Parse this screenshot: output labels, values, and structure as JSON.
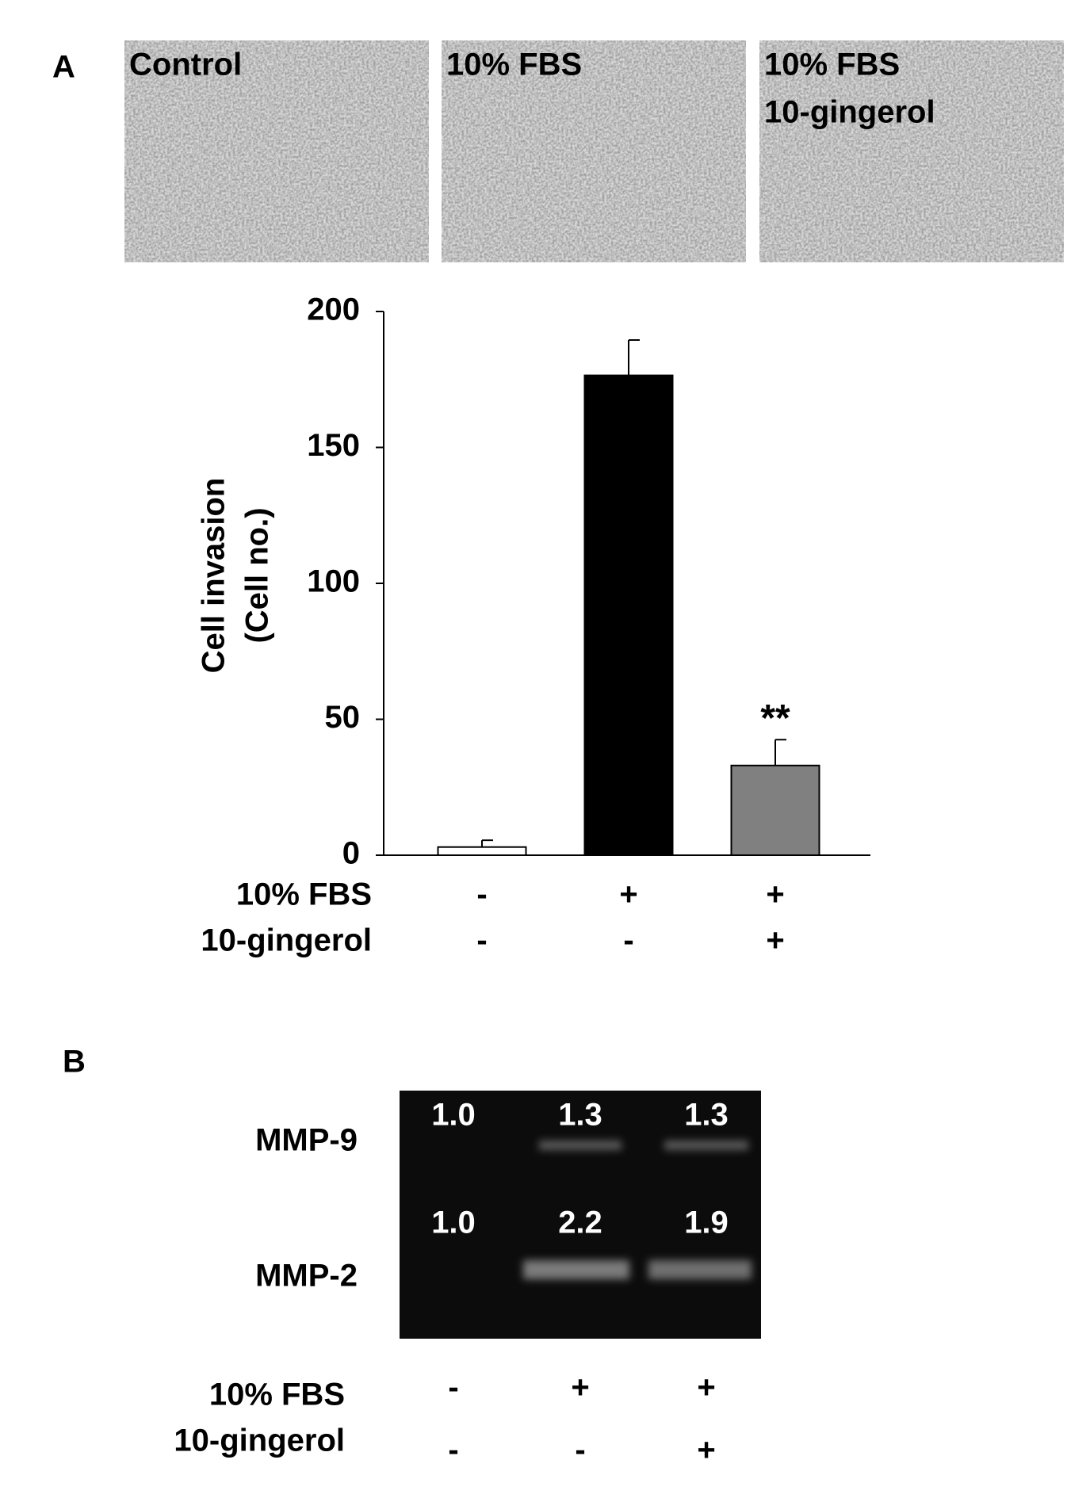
{
  "panel_a": {
    "label": "A",
    "images": [
      [
        "Control"
      ],
      [
        "10% FBS"
      ],
      [
        "10% FBS",
        "10-gingerol"
      ]
    ]
  },
  "chart_data": {
    "type": "bar",
    "ylabel": [
      "Cell invasion",
      "(Cell no.)"
    ],
    "values": [
      3,
      176.5,
      33
    ],
    "errors": [
      2.5,
      13,
      9.5
    ],
    "colors": [
      "#ffffff",
      "#000000",
      "#808080"
    ],
    "annotations": [
      {
        "index": 2,
        "text": "**"
      }
    ],
    "ylim": [
      0,
      200
    ],
    "yticks": [
      0,
      50,
      100,
      150,
      200
    ],
    "conditions": [
      {
        "name": "10% FBS",
        "values": [
          "-",
          "+",
          "+"
        ]
      },
      {
        "name": "10-gingerol",
        "values": [
          "-",
          "-",
          "+"
        ]
      }
    ]
  },
  "panel_b": {
    "label": "B",
    "bands": [
      {
        "name": "MMP-9",
        "values": [
          "1.0",
          "1.3",
          "1.3"
        ]
      },
      {
        "name": "MMP-2",
        "values": [
          "1.0",
          "2.2",
          "1.9"
        ]
      }
    ],
    "conditions": [
      {
        "name": "10% FBS",
        "values": [
          "-",
          "+",
          "+"
        ]
      },
      {
        "name": "10-gingerol",
        "values": [
          "-",
          "-",
          "+"
        ]
      }
    ]
  }
}
